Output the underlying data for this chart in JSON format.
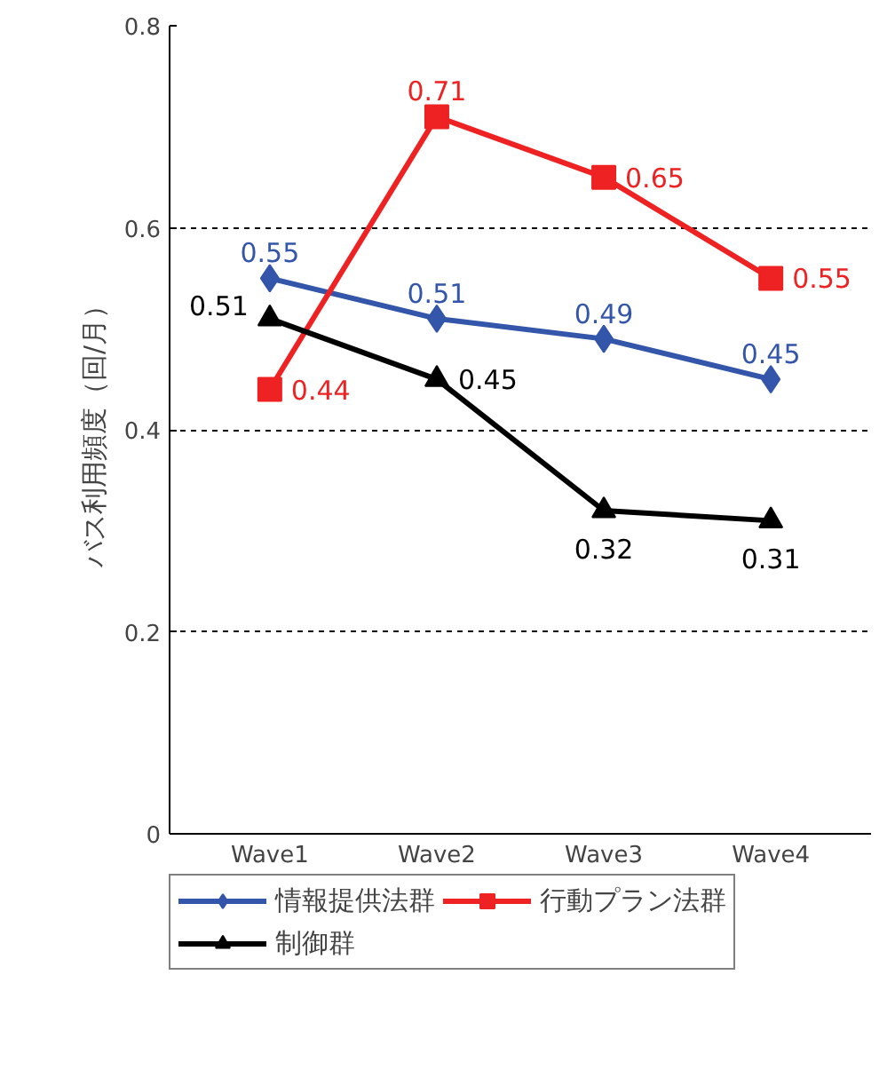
{
  "chart_data": {
    "type": "line",
    "ylabel": "バス利用頻度（回/月）",
    "categories": [
      "Wave1",
      "Wave2",
      "Wave3",
      "Wave4"
    ],
    "series": [
      {
        "name": "情報提供法群",
        "color": "#3355aa",
        "marker": "diamond",
        "values": [
          0.55,
          0.51,
          0.49,
          0.45
        ]
      },
      {
        "name": "行動プラン法群",
        "color": "#ee2222",
        "marker": "square",
        "values": [
          0.44,
          0.71,
          0.65,
          0.55
        ]
      },
      {
        "name": "制御群",
        "color": "#000000",
        "marker": "triangle",
        "values": [
          0.51,
          0.45,
          0.32,
          0.31
        ]
      }
    ],
    "ylim": [
      0,
      0.8
    ],
    "yticks": [
      0,
      0.2,
      0.4,
      0.6,
      0.8
    ],
    "grid": "y",
    "legend": "bottom",
    "data_labels": true,
    "line_style": "solid"
  }
}
